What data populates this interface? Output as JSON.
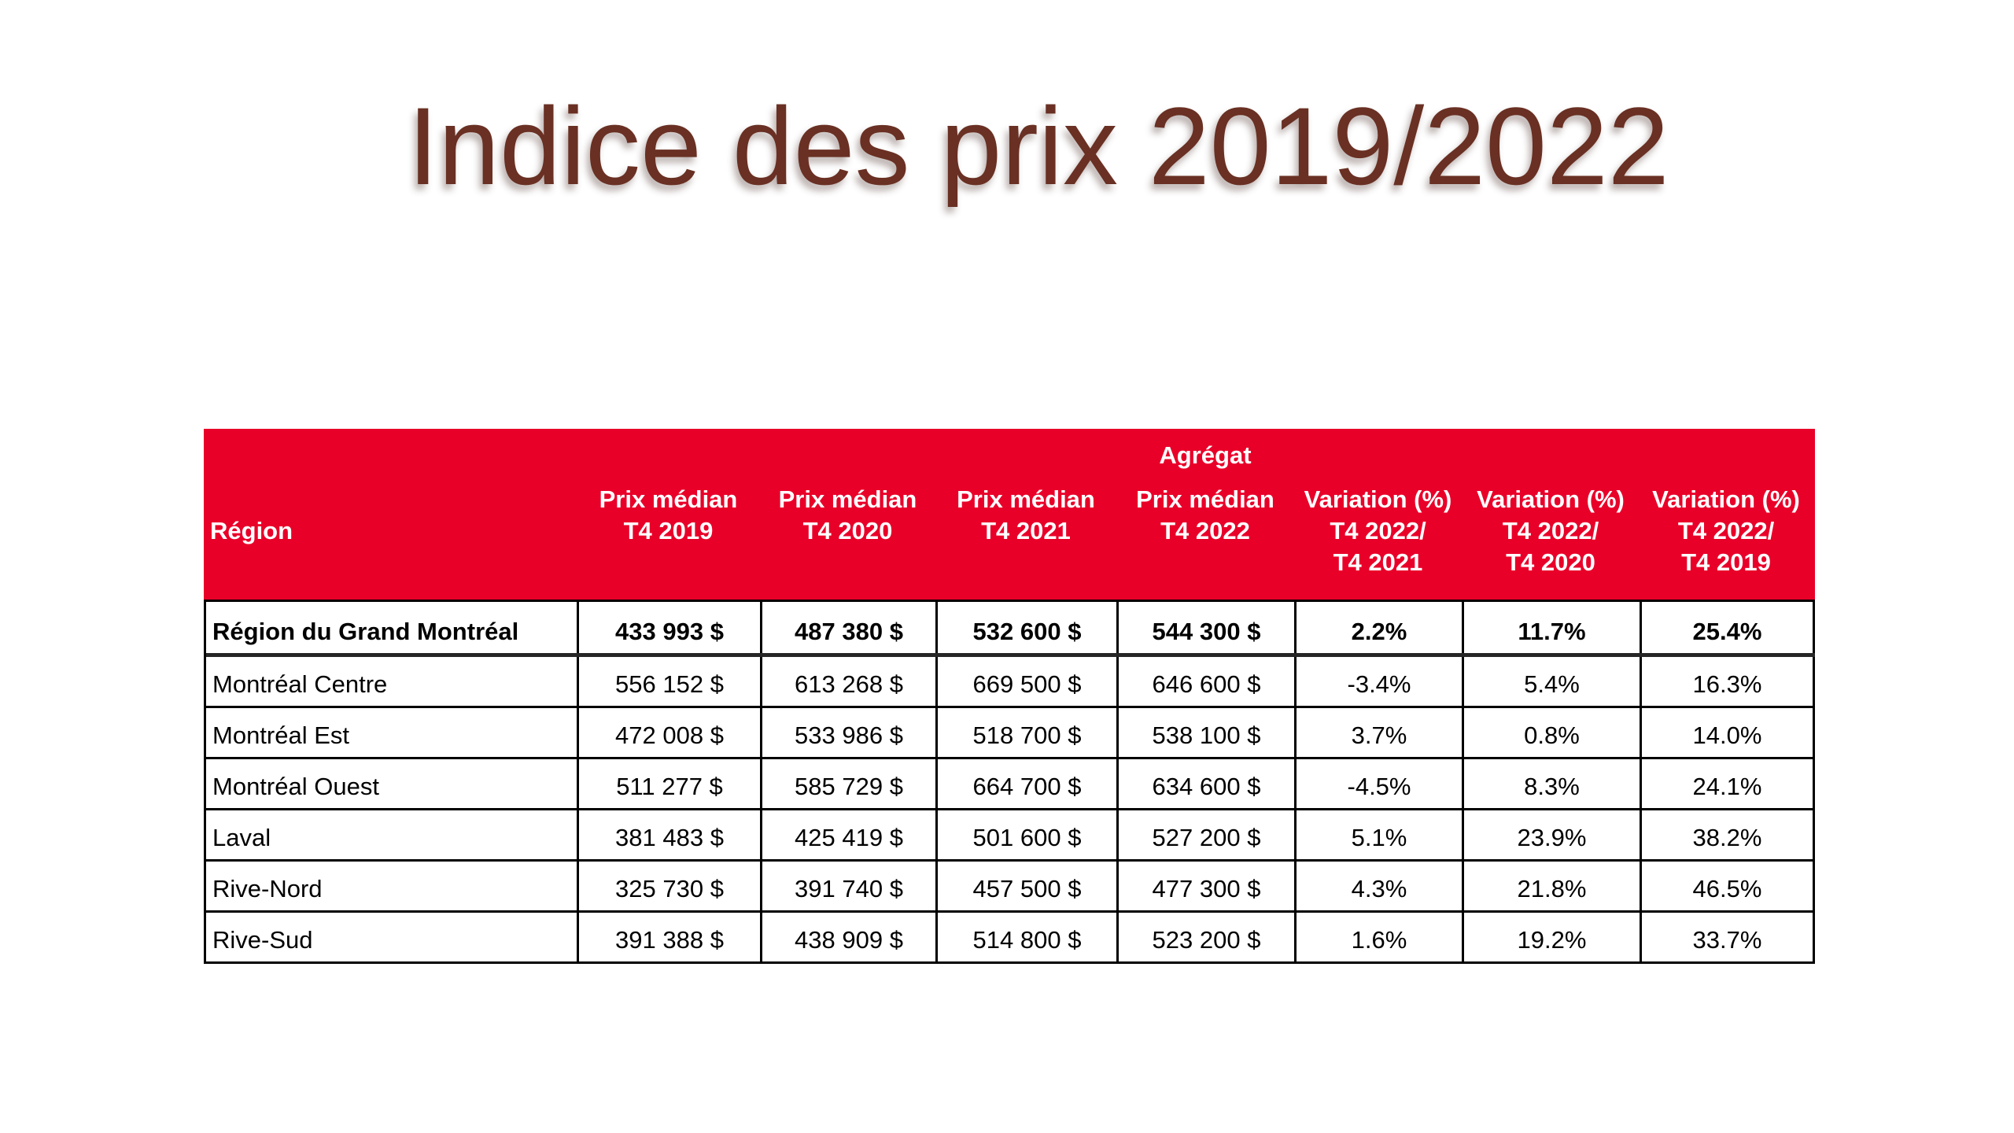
{
  "slide_title": "Indice des prix 2019/2022",
  "colors": {
    "header_red": "#E90029",
    "title_brown": "#693023",
    "border_black": "#000000"
  },
  "table": {
    "aggregate_label": "Agrégat",
    "header": {
      "region": "Région",
      "price_columns": [
        {
          "l1": "Prix médian",
          "l2": "T4 2019"
        },
        {
          "l1": "Prix médian",
          "l2": "T4 2020"
        },
        {
          "l1": "Prix médian",
          "l2": "T4 2021"
        },
        {
          "l1": "Prix médian",
          "l2": "T4 2022"
        }
      ],
      "variation_columns": [
        {
          "l1": "Variation (%)",
          "l2": "T4 2022/",
          "l3": "T4 2021"
        },
        {
          "l1": "Variation (%)",
          "l2": "T4 2022/",
          "l3": "T4 2020"
        },
        {
          "l1": "Variation (%)",
          "l2": "T4 2022/",
          "l3": "T4 2019"
        }
      ]
    },
    "rows": [
      {
        "region": "Région du Grand Montréal",
        "p2019": "433 993 $",
        "p2020": "487 380 $",
        "p2021": "532 600 $",
        "p2022": "544 300 $",
        "v2021": "2.2%",
        "v2020": "11.7%",
        "v2019": "25.4%"
      },
      {
        "region": "Montréal Centre",
        "p2019": "556 152 $",
        "p2020": "613 268 $",
        "p2021": "669 500 $",
        "p2022": "646 600 $",
        "v2021": "-3.4%",
        "v2020": "5.4%",
        "v2019": "16.3%"
      },
      {
        "region": "Montréal Est",
        "p2019": "472 008 $",
        "p2020": "533 986 $",
        "p2021": "518 700 $",
        "p2022": "538 100 $",
        "v2021": "3.7%",
        "v2020": "0.8%",
        "v2019": "14.0%"
      },
      {
        "region": "Montréal Ouest",
        "p2019": "511 277 $",
        "p2020": "585 729 $",
        "p2021": "664 700 $",
        "p2022": "634 600 $",
        "v2021": "-4.5%",
        "v2020": "8.3%",
        "v2019": "24.1%"
      },
      {
        "region": "Laval",
        "p2019": "381 483 $",
        "p2020": "425 419 $",
        "p2021": "501 600 $",
        "p2022": "527 200 $",
        "v2021": "5.1%",
        "v2020": "23.9%",
        "v2019": "38.2%"
      },
      {
        "region": "Rive-Nord",
        "p2019": "325 730 $",
        "p2020": "391 740 $",
        "p2021": "457 500 $",
        "p2022": "477 300 $",
        "v2021": "4.3%",
        "v2020": "21.8%",
        "v2019": "46.5%"
      },
      {
        "region": "Rive-Sud",
        "p2019": "391 388 $",
        "p2020": "438 909 $",
        "p2021": "514 800 $",
        "p2022": "523 200 $",
        "v2021": "1.6%",
        "v2020": "19.2%",
        "v2019": "33.7%"
      }
    ]
  }
}
